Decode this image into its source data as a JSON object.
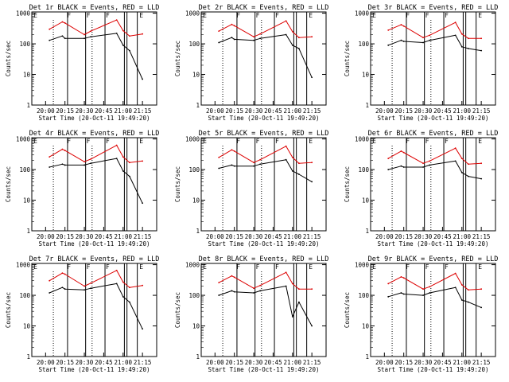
{
  "colors": {
    "events": "#000000",
    "lld": "#dd0000",
    "frame": "#000000",
    "background": "#ffffff"
  },
  "time_axis": {
    "ticks": [
      "20:00",
      "20:15",
      "20:30",
      "20:45",
      "21:00",
      "21:15"
    ],
    "xlabel": "Start Time (20-Oct-11 19:49:20)"
  },
  "y_axis": {
    "ylabel": "Counts/sec",
    "ticks": [
      "1",
      "10",
      "100",
      "1000"
    ],
    "scale": "log",
    "ylim": [
      1,
      1100
    ]
  },
  "flags": [
    "E",
    "F",
    "F",
    "F",
    "E"
  ],
  "chart_data": [
    {
      "type": "line",
      "title": "Det 1r BLACK = Events, RED = LLD",
      "x": [
        "20:03",
        "20:13",
        "20:15",
        "20:30",
        "20:35",
        "20:55",
        "21:00",
        "21:05",
        "21:15"
      ],
      "series": [
        {
          "name": "LLD",
          "color": "#dd0000",
          "values": [
            300,
            520,
            480,
            200,
            260,
            600,
            270,
            180,
            210
          ]
        },
        {
          "name": "Events",
          "color": "#000000",
          "values": [
            130,
            180,
            150,
            150,
            170,
            220,
            90,
            60,
            7
          ]
        }
      ]
    },
    {
      "type": "line",
      "title": "Det 2r BLACK = Events, RED = LLD",
      "x": [
        "20:03",
        "20:13",
        "20:15",
        "20:30",
        "20:35",
        "20:55",
        "21:00",
        "21:05",
        "21:15"
      ],
      "series": [
        {
          "name": "LLD",
          "color": "#dd0000",
          "values": [
            260,
            430,
            390,
            170,
            210,
            560,
            250,
            160,
            170
          ]
        },
        {
          "name": "Events",
          "color": "#000000",
          "values": [
            110,
            160,
            140,
            130,
            150,
            200,
            90,
            70,
            8
          ]
        }
      ]
    },
    {
      "type": "line",
      "title": "Det 3r BLACK = Events, RED = LLD",
      "x": [
        "20:03",
        "20:13",
        "20:15",
        "20:30",
        "20:35",
        "20:55",
        "21:00",
        "21:05",
        "21:15"
      ],
      "series": [
        {
          "name": "LLD",
          "color": "#dd0000",
          "values": [
            280,
            420,
            380,
            160,
            190,
            500,
            210,
            150,
            150
          ]
        },
        {
          "name": "Events",
          "color": "#000000",
          "values": [
            90,
            130,
            120,
            110,
            130,
            190,
            80,
            70,
            60
          ]
        }
      ]
    },
    {
      "type": "line",
      "title": "Det 4r BLACK = Events, RED = LLD",
      "x": [
        "20:03",
        "20:13",
        "20:15",
        "20:30",
        "20:35",
        "20:55",
        "21:00",
        "21:05",
        "21:15"
      ],
      "series": [
        {
          "name": "LLD",
          "color": "#dd0000",
          "values": [
            260,
            460,
            420,
            180,
            220,
            620,
            260,
            170,
            190
          ]
        },
        {
          "name": "Events",
          "color": "#000000",
          "values": [
            120,
            150,
            140,
            140,
            160,
            230,
            90,
            60,
            8
          ]
        }
      ]
    },
    {
      "type": "line",
      "title": "Det 5r BLACK = Events, RED = LLD",
      "x": [
        "20:03",
        "20:13",
        "20:15",
        "20:30",
        "20:35",
        "20:55",
        "21:00",
        "21:05",
        "21:15"
      ],
      "series": [
        {
          "name": "LLD",
          "color": "#dd0000",
          "values": [
            250,
            440,
            400,
            170,
            210,
            580,
            250,
            160,
            170
          ]
        },
        {
          "name": "Events",
          "color": "#000000",
          "values": [
            110,
            140,
            130,
            130,
            150,
            210,
            90,
            70,
            40
          ]
        }
      ]
    },
    {
      "type": "line",
      "title": "Det 6r BLACK = Events, RED = LLD",
      "x": [
        "20:03",
        "20:13",
        "20:15",
        "20:30",
        "20:35",
        "20:55",
        "21:00",
        "21:05",
        "21:15"
      ],
      "series": [
        {
          "name": "LLD",
          "color": "#dd0000",
          "values": [
            230,
            400,
            360,
            160,
            190,
            500,
            230,
            150,
            160
          ]
        },
        {
          "name": "Events",
          "color": "#000000",
          "values": [
            100,
            130,
            120,
            120,
            140,
            190,
            80,
            60,
            50
          ]
        }
      ]
    },
    {
      "type": "line",
      "title": "Det 7r BLACK = Events, RED = LLD",
      "x": [
        "20:03",
        "20:13",
        "20:15",
        "20:30",
        "20:35",
        "20:55",
        "21:00",
        "21:05",
        "21:15"
      ],
      "series": [
        {
          "name": "LLD",
          "color": "#dd0000",
          "values": [
            300,
            530,
            490,
            200,
            250,
            650,
            270,
            180,
            210
          ]
        },
        {
          "name": "Events",
          "color": "#000000",
          "values": [
            120,
            180,
            160,
            150,
            170,
            240,
            90,
            60,
            8
          ]
        }
      ]
    },
    {
      "type": "line",
      "title": "Det 8r BLACK = Events, RED = LLD",
      "x": [
        "20:03",
        "20:13",
        "20:15",
        "20:30",
        "20:35",
        "20:55",
        "21:00",
        "21:05",
        "21:15"
      ],
      "series": [
        {
          "name": "LLD",
          "color": "#dd0000",
          "values": [
            260,
            430,
            390,
            170,
            210,
            560,
            240,
            160,
            160
          ]
        },
        {
          "name": "Events",
          "color": "#000000",
          "values": [
            100,
            140,
            130,
            120,
            140,
            200,
            20,
            60,
            10
          ]
        }
      ]
    },
    {
      "type": "line",
      "title": "Det 9r BLACK = Events, RED = LLD",
      "x": [
        "20:03",
        "20:13",
        "20:15",
        "20:30",
        "20:35",
        "20:55",
        "21:00",
        "21:05",
        "21:15"
      ],
      "series": [
        {
          "name": "LLD",
          "color": "#dd0000",
          "values": [
            240,
            400,
            370,
            160,
            190,
            520,
            220,
            150,
            160
          ]
        },
        {
          "name": "Events",
          "color": "#000000",
          "values": [
            90,
            120,
            110,
            100,
            120,
            180,
            70,
            60,
            40
          ]
        }
      ]
    }
  ]
}
